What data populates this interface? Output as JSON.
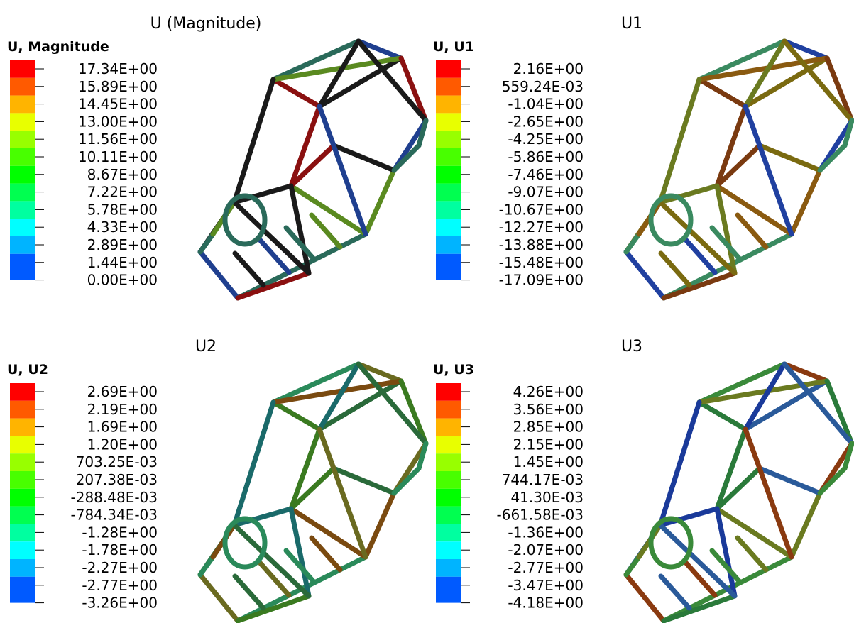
{
  "legend_colors": [
    "#ff0000",
    "#ff5a00",
    "#ffb400",
    "#e8ff00",
    "#98ff00",
    "#48ff00",
    "#00ff00",
    "#00ff50",
    "#00ffa0",
    "#00ffff",
    "#00b4ff",
    "#005aff",
    "#0000ff"
  ],
  "panels": [
    {
      "title": "U (Magnitude)",
      "legend_title": "U, Magnitude",
      "labels": [
        "17.34E+00",
        "15.89E+00",
        "14.45E+00",
        "13.00E+00",
        "11.56E+00",
        "10.11E+00",
        "8.67E+00",
        "7.22E+00",
        "5.78E+00",
        "4.33E+00",
        "2.89E+00",
        "1.44E+00",
        "0.00E+00"
      ]
    },
    {
      "title": "U1",
      "legend_title": "U, U1",
      "labels": [
        "2.16E+00",
        "559.24E-03",
        "-1.04E+00",
        "-2.65E+00",
        "-4.25E+00",
        "-5.86E+00",
        "-7.46E+00",
        "-9.07E+00",
        "-10.67E+00",
        "-12.27E+00",
        "-13.88E+00",
        "-15.48E+00",
        "-17.09E+00"
      ]
    },
    {
      "title": "U2",
      "legend_title": "U, U2",
      "labels": [
        "2.69E+00",
        "2.19E+00",
        "1.69E+00",
        "1.20E+00",
        "703.25E-03",
        "207.38E-03",
        "-288.48E-03",
        "-784.34E-03",
        "-1.28E+00",
        "-1.78E+00",
        "-2.27E+00",
        "-2.77E+00",
        "-3.26E+00"
      ]
    },
    {
      "title": "U3",
      "legend_title": "U, U3",
      "labels": [
        "4.26E+00",
        "3.56E+00",
        "2.85E+00",
        "2.15E+00",
        "1.45E+00",
        "744.17E-03",
        "41.30E-03",
        "-661.58E-03",
        "-1.36E+00",
        "-2.07E+00",
        "-2.77E+00",
        "-3.47E+00",
        "-4.18E+00"
      ]
    }
  ]
}
